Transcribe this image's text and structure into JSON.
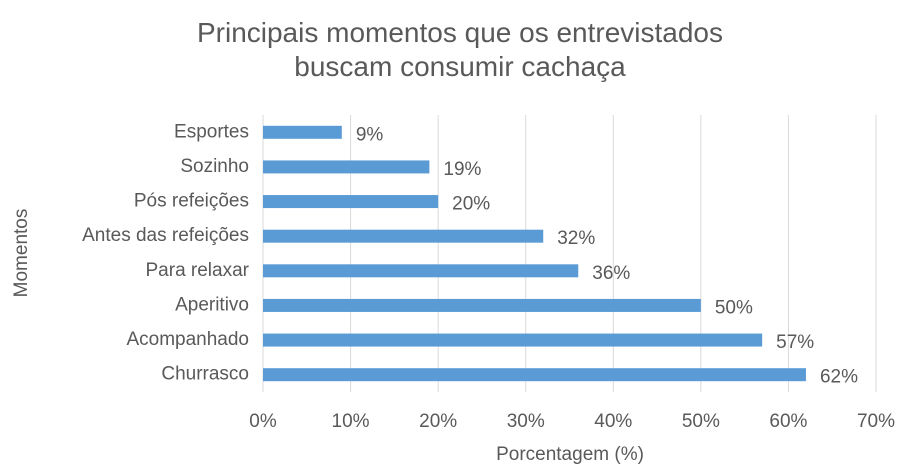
{
  "chart_data": {
    "type": "bar",
    "orientation": "horizontal",
    "title": "Principais momentos que os entrevistados buscam consumir cachaça",
    "x_label": "Porcentagem (%)",
    "y_label": "Momentos",
    "categories": [
      "Esportes",
      "Sozinho",
      "Pós refeições",
      "Antes das refeições",
      "Para relaxar",
      "Aperitivo",
      "Acompanhado",
      "Churrasco"
    ],
    "values": [
      9,
      19,
      20,
      32,
      36,
      50,
      57,
      62
    ],
    "value_labels": [
      "9%",
      "19%",
      "20%",
      "32%",
      "36%",
      "50%",
      "57%",
      "62%"
    ],
    "color": "#5b9bd5",
    "xlim": [
      0,
      70
    ],
    "xticks": [
      {
        "value": 0,
        "label": "0%"
      },
      {
        "value": 10,
        "label": "10%"
      },
      {
        "value": 20,
        "label": "20%"
      },
      {
        "value": 30,
        "label": "30%"
      },
      {
        "value": 40,
        "label": "40%"
      },
      {
        "value": 50,
        "label": "50%"
      },
      {
        "value": 60,
        "label": "60%"
      },
      {
        "value": 70,
        "label": "70%"
      }
    ],
    "grid": true
  }
}
